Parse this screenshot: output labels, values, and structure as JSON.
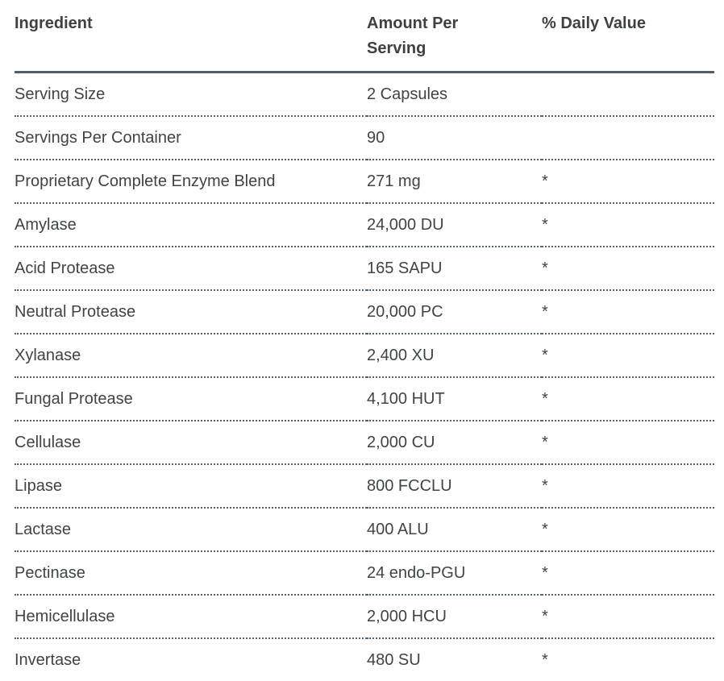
{
  "page": {
    "background_color": "#ffffff",
    "text_color": "#3f4449",
    "rule_color": "#52606b"
  },
  "table": {
    "columns": [
      {
        "label": "Ingredient"
      },
      {
        "label": "Amount Per Serving"
      },
      {
        "label": "% Daily Value"
      }
    ],
    "rows": [
      {
        "ingredient": "Serving Size",
        "amount": "2 Capsules",
        "daily_value": ""
      },
      {
        "ingredient": "Servings Per Container",
        "amount": "90",
        "daily_value": ""
      },
      {
        "ingredient": "Proprietary Complete Enzyme Blend",
        "amount": "271 mg",
        "daily_value": "*"
      },
      {
        "ingredient": "Amylase",
        "amount": "24,000 DU",
        "daily_value": "*"
      },
      {
        "ingredient": "Acid Protease",
        "amount": "165 SAPU",
        "daily_value": "*"
      },
      {
        "ingredient": "Neutral Protease",
        "amount": "20,000 PC",
        "daily_value": "*"
      },
      {
        "ingredient": "Xylanase",
        "amount": "2,400 XU",
        "daily_value": "*"
      },
      {
        "ingredient": "Fungal Protease",
        "amount": "4,100 HUT",
        "daily_value": "*"
      },
      {
        "ingredient": "Cellulase",
        "amount": "2,000 CU",
        "daily_value": "*"
      },
      {
        "ingredient": "Lipase",
        "amount": "800 FCCLU",
        "daily_value": "*"
      },
      {
        "ingredient": "Lactase",
        "amount": "400 ALU",
        "daily_value": "*"
      },
      {
        "ingredient": "Pectinase",
        "amount": "24 endo-PGU",
        "daily_value": "*"
      },
      {
        "ingredient": "Hemicellulase",
        "amount": "2,000 HCU",
        "daily_value": "*"
      },
      {
        "ingredient": "Invertase",
        "amount": "480 SU",
        "daily_value": "*"
      }
    ]
  }
}
